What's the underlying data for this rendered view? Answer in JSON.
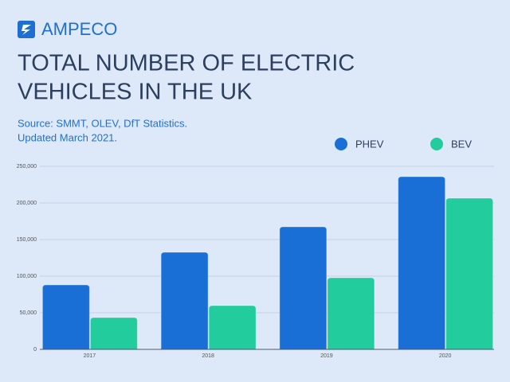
{
  "brand": "AMPECO",
  "chart_data": {
    "type": "bar",
    "title": [
      "TOTAL NUMBER OF ELECTRIC",
      "VEHICLES IN THE UK"
    ],
    "subtitle": [
      "Source:  SMMT, OLEV, DfT Statistics.",
      "Updated March 2021."
    ],
    "categories": [
      "2017",
      "2018",
      "2019",
      "2020"
    ],
    "series": [
      {
        "name": "PHEV",
        "color": "#1a6fd6",
        "values": [
          88000,
          132600,
          167400,
          235900
        ]
      },
      {
        "name": "BEV",
        "color": "#22cc9c",
        "values": [
          43500,
          59800,
          97800,
          206500
        ]
      }
    ],
    "ylim": [
      0,
      250000
    ],
    "yticks": [
      0,
      {
        "value": 50000,
        "label": "50,000"
      },
      {
        "value": 100000,
        "label": "100,000"
      },
      {
        "value": 150000,
        "label": "150,000"
      },
      {
        "value": 200000,
        "label": "200,000"
      },
      {
        "value": 250000,
        "label": "250,000"
      }
    ],
    "grid": true,
    "legend": "top-right"
  }
}
